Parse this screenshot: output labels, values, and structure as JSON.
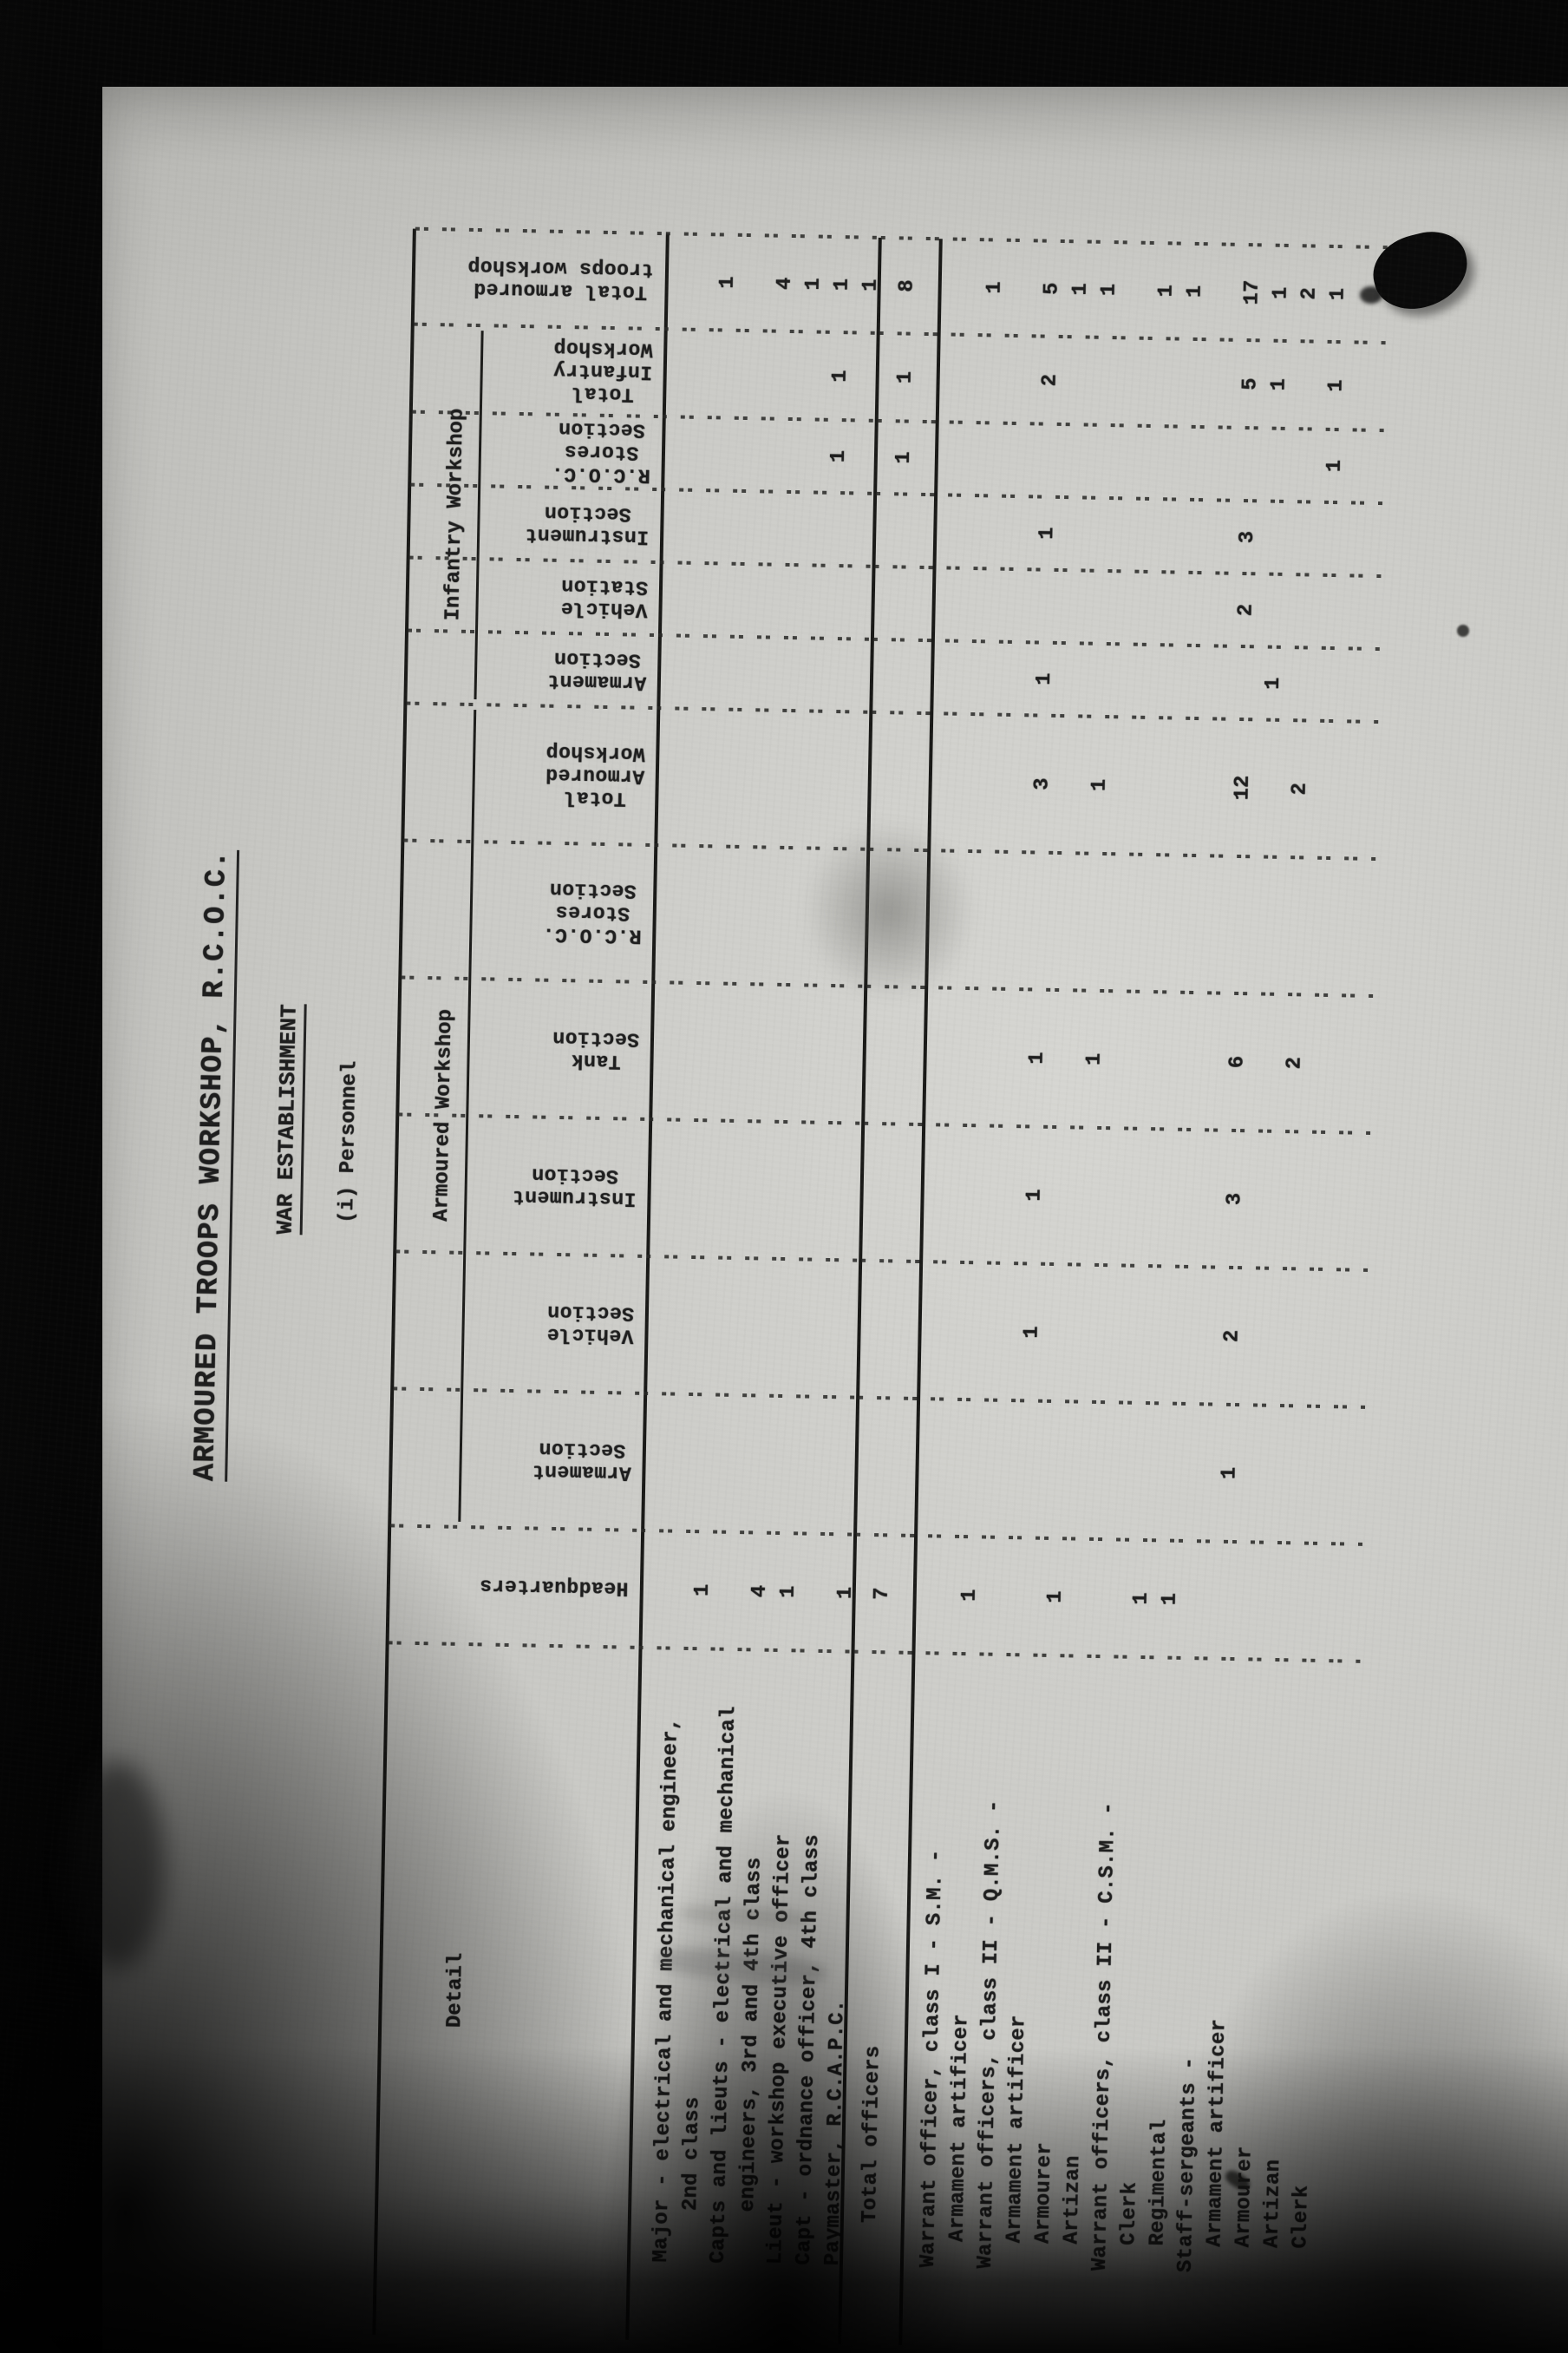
{
  "page": {
    "title": "ARMOURED TROOPS WORKSHOP, R.C.O.C.",
    "subtitle": "WAR ESTABLISHMENT",
    "section_heading": "(i) Personnel"
  },
  "colors": {
    "paper": "#c9c9c5",
    "ink": "#1d1d1d",
    "scanner_background": "#060606"
  },
  "table": {
    "detail_header": "Detail",
    "group_headers": [
      {
        "label": "Armoured Workshop",
        "col_start": 1,
        "col_end": 6
      },
      {
        "label": "Infantry Workshop",
        "col_start": 7,
        "col_end": 11
      }
    ],
    "columns": [
      {
        "id": "headquarters",
        "label_lines": [
          "Headquarters"
        ]
      },
      {
        "id": "armoured-armament-section",
        "label_lines": [
          "Armament",
          "Section"
        ]
      },
      {
        "id": "armoured-vehicle-section",
        "label_lines": [
          "Vehicle",
          "Section"
        ]
      },
      {
        "id": "armoured-instrument-section",
        "label_lines": [
          "Instrument",
          "Section"
        ]
      },
      {
        "id": "armoured-tank-section",
        "label_lines": [
          "Tank",
          "Section"
        ]
      },
      {
        "id": "armoured-rcoc-stores-section",
        "label_lines": [
          "R.C.O.C.",
          "Stores",
          "Section"
        ]
      },
      {
        "id": "total-armoured-workshop",
        "label_lines": [
          "Total",
          "Armoured",
          "Workshop"
        ]
      },
      {
        "id": "infantry-armament-section",
        "label_lines": [
          "Armament",
          "Section"
        ]
      },
      {
        "id": "infantry-vehicle-station",
        "label_lines": [
          "Vehicle",
          "Station"
        ]
      },
      {
        "id": "infantry-instrument-section",
        "label_lines": [
          "Instrument",
          "Section"
        ]
      },
      {
        "id": "infantry-rcoc-stores-section",
        "label_lines": [
          "R.C.O.C.",
          "Stores",
          "Section"
        ]
      },
      {
        "id": "total-infantry-workshop",
        "label_lines": [
          "Total",
          "Infantry",
          "Workshop"
        ]
      },
      {
        "id": "total-armoured-troops-workshop",
        "label_lines": [
          "Total armoured",
          "troops workshop"
        ]
      }
    ],
    "rows": [
      {
        "label": "Major - electrical and mechanical engineer,",
        "indent": 0
      },
      {
        "label": "2nd class",
        "indent": 2,
        "values": [
          "1",
          "",
          "",
          "",
          "",
          "",
          "",
          "",
          "",
          "",
          "",
          "",
          "1"
        ]
      },
      {
        "label": "Capts and lieuts - electrical and mechanical",
        "indent": 0
      },
      {
        "label": "engineers, 3rd and 4th class",
        "indent": 2,
        "values": [
          "4",
          "",
          "",
          "",
          "",
          "",
          "",
          "",
          "",
          "",
          "",
          "",
          "4"
        ]
      },
      {
        "label": "Lieut - workshop executive officer",
        "indent": 0,
        "values": [
          "1",
          "",
          "",
          "",
          "",
          "",
          "",
          "",
          "",
          "",
          "",
          "",
          "1"
        ]
      },
      {
        "label": "Capt - ordnance officer, 4th class",
        "indent": 0,
        "values": [
          "",
          "",
          "",
          "",
          "",
          "",
          "",
          "",
          "",
          "",
          "1",
          "1",
          "1"
        ]
      },
      {
        "label": "Paymaster, R.C.A.P.C.",
        "indent": 0,
        "values": [
          "1",
          "",
          "",
          "",
          "",
          "",
          "",
          "",
          "",
          "",
          "",
          "",
          "1"
        ]
      },
      {
        "label": "Total officers",
        "indent": 3,
        "row_type": "total",
        "values": [
          "7",
          "",
          "",
          "",
          "",
          "",
          "",
          "",
          "",
          "",
          "1",
          "1",
          "8"
        ]
      },
      {
        "label": "Warrant officer, class I - S.M. -",
        "indent": 0
      },
      {
        "label": "Armament artificer",
        "indent": 1,
        "values": [
          "1",
          "",
          "",
          "",
          "",
          "",
          "",
          "",
          "",
          "",
          "",
          "",
          "1"
        ]
      },
      {
        "label": "Warrant officers, class II - Q.M.S. -",
        "indent": 0
      },
      {
        "label": "Armament artificer",
        "indent": 1,
        "values": [
          "",
          "",
          "1",
          "1",
          "1",
          "",
          "3",
          "1",
          "",
          "1",
          "",
          "2",
          "5"
        ]
      },
      {
        "label": "Armourer",
        "indent": 1,
        "values": [
          "1",
          "",
          "",
          "",
          "",
          "",
          "",
          "",
          "",
          "",
          "",
          "",
          "1"
        ]
      },
      {
        "label": "Artizan",
        "indent": 1,
        "values": [
          "",
          "",
          "",
          "",
          "1",
          "",
          "1",
          "",
          "",
          "",
          "",
          "",
          "1"
        ]
      },
      {
        "label": "Warrant officers, class II - C.S.M. -",
        "indent": 0
      },
      {
        "label": "Clerk",
        "indent": 1,
        "values": [
          "1",
          "",
          "",
          "",
          "",
          "",
          "",
          "",
          "",
          "",
          "",
          "",
          "1"
        ]
      },
      {
        "label": "Regimental",
        "indent": 1,
        "values": [
          "1",
          "",
          "",
          "",
          "",
          "",
          "",
          "",
          "",
          "",
          "",
          "",
          "1"
        ]
      },
      {
        "label": "Staff-sergeants -",
        "indent": 0
      },
      {
        "label": "Armament artificer",
        "indent": 1,
        "values": [
          "",
          "1",
          "2",
          "3",
          "6",
          "",
          "12",
          "",
          "2",
          "3",
          "",
          "5",
          "17"
        ]
      },
      {
        "label": "Armourer",
        "indent": 1,
        "values": [
          "",
          "",
          "",
          "",
          "",
          "",
          "",
          "1",
          "",
          "",
          "",
          "1",
          "1"
        ]
      },
      {
        "label": "Artizan",
        "indent": 1,
        "values": [
          "",
          "",
          "",
          "",
          "2",
          "",
          "2",
          "",
          "",
          "",
          "",
          "",
          "2"
        ]
      },
      {
        "label": "Clerk",
        "indent": 1,
        "values": [
          "",
          "",
          "",
          "",
          "",
          "",
          "",
          "",
          "",
          "",
          "1",
          "1",
          "1"
        ]
      }
    ]
  }
}
